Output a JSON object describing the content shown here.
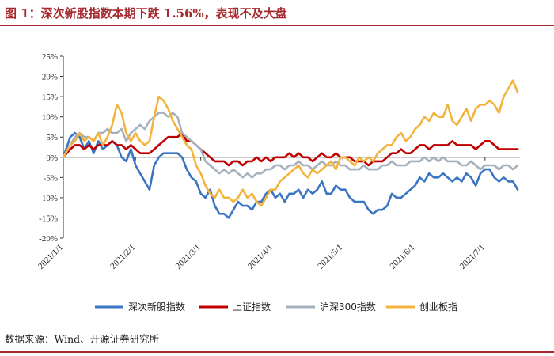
{
  "figure": {
    "title": "图 1：深次新股指数本期下跌 1.56%，表现不及大盘",
    "source": "数据来源：Wind、开源证券研究所"
  },
  "chart_data": {
    "type": "line",
    "title": "图 1：深次新股指数本期下跌 1.56%，表现不及大盘",
    "xlabel": "",
    "ylabel": "",
    "ylim": [
      -20,
      25
    ],
    "yticks": [
      25,
      20,
      15,
      10,
      5,
      0,
      -5,
      -10,
      -15,
      -20
    ],
    "ytick_labels": [
      "25%",
      "20%",
      "15%",
      "10%",
      "5%",
      "0%",
      "-5%",
      "-10%",
      "-15%",
      "-20%"
    ],
    "x_range": [
      0,
      196
    ],
    "xticks": [
      {
        "pos": 0,
        "label": "2021/1/1"
      },
      {
        "pos": 31,
        "label": "2021/2/1"
      },
      {
        "pos": 59,
        "label": "2021/3/1"
      },
      {
        "pos": 90,
        "label": "2021/4/1"
      },
      {
        "pos": 120,
        "label": "2021/5/1"
      },
      {
        "pos": 151,
        "label": "2021/6/1"
      },
      {
        "pos": 181,
        "label": "2021/7/1"
      }
    ],
    "legend_position": "bottom",
    "series": [
      {
        "name": "深次新股指数",
        "color": "#3a75c4",
        "x": [
          0,
          3,
          5,
          7,
          9,
          11,
          13,
          15,
          17,
          19,
          21,
          23,
          25,
          27,
          29,
          31,
          33,
          35,
          37,
          39,
          41,
          43,
          45,
          47,
          49,
          51,
          53,
          55,
          57,
          59,
          61,
          63,
          65,
          67,
          69,
          71,
          73,
          75,
          77,
          79,
          81,
          83,
          85,
          87,
          89,
          91,
          93,
          95,
          97,
          99,
          101,
          103,
          105,
          107,
          109,
          111,
          113,
          115,
          117,
          119,
          121,
          123,
          125,
          127,
          129,
          131,
          133,
          135,
          137,
          139,
          141,
          143,
          145,
          147,
          149,
          151,
          153,
          155,
          157,
          159,
          161,
          163,
          165,
          167,
          169,
          171,
          173,
          175,
          177,
          179,
          181,
          183,
          185,
          187,
          189,
          191,
          193,
          195
        ],
        "y": [
          0,
          5,
          6,
          5,
          2,
          4,
          1,
          4,
          2,
          3,
          4,
          3,
          0,
          -1,
          2,
          -2,
          -4,
          -6,
          -8,
          -2,
          0,
          1,
          1,
          1,
          1,
          0,
          -3,
          -5,
          -6,
          -9,
          -10,
          -8,
          -12,
          -14,
          -14,
          -15,
          -13,
          -11,
          -12,
          -12,
          -13,
          -11,
          -11,
          -9,
          -8,
          -10,
          -9,
          -11,
          -9,
          -9,
          -8,
          -10,
          -8,
          -9,
          -8,
          -6,
          -9,
          -9,
          -7,
          -8,
          -8,
          -10,
          -11,
          -11,
          -11,
          -13,
          -14,
          -13,
          -13,
          -12,
          -9,
          -10,
          -10,
          -9,
          -8,
          -7,
          -5,
          -6,
          -4,
          -5,
          -5,
          -4,
          -5,
          -6,
          -5,
          -6,
          -4,
          -5,
          -7,
          -4,
          -3,
          -3,
          -5,
          -6,
          -5,
          -6,
          -6,
          -8
        ]
      },
      {
        "name": "上证指数",
        "color": "#c00000",
        "x": [
          0,
          3,
          5,
          7,
          9,
          11,
          13,
          15,
          17,
          19,
          21,
          23,
          25,
          27,
          29,
          31,
          33,
          35,
          37,
          39,
          41,
          43,
          45,
          47,
          49,
          51,
          53,
          55,
          57,
          59,
          61,
          63,
          65,
          67,
          69,
          71,
          73,
          75,
          77,
          79,
          81,
          83,
          85,
          87,
          89,
          91,
          93,
          95,
          97,
          99,
          101,
          103,
          105,
          107,
          109,
          111,
          113,
          115,
          117,
          119,
          121,
          123,
          125,
          127,
          129,
          131,
          133,
          135,
          137,
          139,
          141,
          143,
          145,
          147,
          149,
          151,
          153,
          155,
          157,
          159,
          161,
          163,
          165,
          167,
          169,
          171,
          173,
          175,
          177,
          179,
          181,
          183,
          185,
          187,
          189,
          191,
          193,
          195
        ],
        "y": [
          0,
          2,
          3,
          3,
          2,
          3,
          2,
          3,
          3,
          3,
          4,
          3,
          3,
          2,
          3,
          2,
          1,
          1,
          1,
          2,
          3,
          4,
          5,
          5,
          5,
          6,
          4,
          4,
          3,
          2,
          1,
          0,
          -1,
          -1,
          -1,
          -2,
          -1,
          -1,
          -2,
          -1,
          -1,
          0,
          -1,
          0,
          -1,
          0,
          0,
          0,
          1,
          0,
          1,
          0,
          0,
          -1,
          0,
          1,
          0,
          0,
          1,
          0,
          0,
          0,
          -1,
          -1,
          -1,
          -2,
          -1,
          -1,
          -1,
          0,
          1,
          1,
          2,
          1,
          1,
          2,
          3,
          3,
          2,
          3,
          3,
          3,
          3,
          4,
          3,
          3,
          3,
          3,
          2,
          3,
          4,
          4,
          3,
          2,
          2,
          2,
          2,
          2
        ]
      },
      {
        "name": "沪深300指数",
        "color": "#a5b2bd",
        "x": [
          0,
          3,
          5,
          7,
          9,
          11,
          13,
          15,
          17,
          19,
          21,
          23,
          25,
          27,
          29,
          31,
          33,
          35,
          37,
          39,
          41,
          43,
          45,
          47,
          49,
          51,
          53,
          55,
          57,
          59,
          61,
          63,
          65,
          67,
          69,
          71,
          73,
          75,
          77,
          79,
          81,
          83,
          85,
          87,
          89,
          91,
          93,
          95,
          97,
          99,
          101,
          103,
          105,
          107,
          109,
          111,
          113,
          115,
          117,
          119,
          121,
          123,
          125,
          127,
          129,
          131,
          133,
          135,
          137,
          139,
          141,
          143,
          145,
          147,
          149,
          151,
          153,
          155,
          157,
          159,
          161,
          163,
          165,
          167,
          169,
          171,
          173,
          175,
          177,
          179,
          181,
          183,
          185,
          187,
          189,
          191,
          193,
          195
        ],
        "y": [
          0,
          3,
          5,
          6,
          5,
          5,
          4,
          6,
          6,
          7,
          6,
          6,
          7,
          4,
          6,
          7,
          8,
          7,
          9,
          10,
          11,
          11,
          10,
          11,
          10,
          6,
          5,
          4,
          3,
          2,
          -1,
          -2,
          -3,
          -4,
          -3,
          -4,
          -3,
          -4,
          -5,
          -4,
          -5,
          -4,
          -4,
          -3,
          -3,
          -2,
          -2,
          -3,
          -2,
          -2,
          -1,
          -2,
          -2,
          -3,
          -2,
          -1,
          -2,
          -2,
          -1,
          -2,
          -2,
          -3,
          -3,
          -3,
          -2,
          -3,
          -3,
          -3,
          -2,
          -2,
          -1,
          -2,
          -2,
          -2,
          -1,
          -1,
          -1,
          0,
          -1,
          0,
          -1,
          0,
          -1,
          -1,
          -1,
          -2,
          -2,
          -1,
          -2,
          -3,
          -2,
          -2,
          -2,
          -3,
          -2,
          -2,
          -3,
          -2
        ]
      },
      {
        "name": "创业板指",
        "color": "#f4b33c",
        "x": [
          0,
          3,
          5,
          7,
          9,
          11,
          13,
          15,
          17,
          19,
          21,
          23,
          25,
          27,
          29,
          31,
          33,
          35,
          37,
          39,
          41,
          43,
          45,
          47,
          49,
          51,
          53,
          55,
          57,
          59,
          61,
          63,
          65,
          67,
          69,
          71,
          73,
          75,
          77,
          79,
          81,
          83,
          85,
          87,
          89,
          91,
          93,
          95,
          97,
          99,
          101,
          103,
          105,
          107,
          109,
          111,
          113,
          115,
          117,
          119,
          121,
          123,
          125,
          127,
          129,
          131,
          133,
          135,
          137,
          139,
          141,
          143,
          145,
          147,
          149,
          151,
          153,
          155,
          157,
          159,
          161,
          163,
          165,
          167,
          169,
          171,
          173,
          175,
          177,
          179,
          181,
          183,
          185,
          187,
          189,
          191,
          193,
          195
        ],
        "y": [
          0,
          3,
          4,
          6,
          4,
          5,
          4,
          6,
          3,
          5,
          8,
          13,
          11,
          6,
          4,
          6,
          4,
          3,
          4,
          10,
          15,
          14,
          12,
          9,
          7,
          5,
          3,
          2,
          -2,
          -4,
          -7,
          -9,
          -10,
          -8,
          -10,
          -10,
          -11,
          -10,
          -8,
          -10,
          -9,
          -11,
          -12,
          -10,
          -8,
          -8,
          -6,
          -5,
          -4,
          -3,
          -2,
          -4,
          -5,
          -3,
          -4,
          -3,
          -2,
          -1,
          -3,
          0,
          0,
          -1,
          -2,
          0,
          -1,
          0,
          -1,
          1,
          2,
          3,
          3,
          5,
          6,
          4,
          5,
          7,
          8,
          10,
          9,
          11,
          10,
          10,
          13,
          9,
          8,
          10,
          12,
          9,
          12,
          13,
          13,
          14,
          13,
          11,
          15,
          17,
          19,
          16
        ]
      }
    ]
  }
}
